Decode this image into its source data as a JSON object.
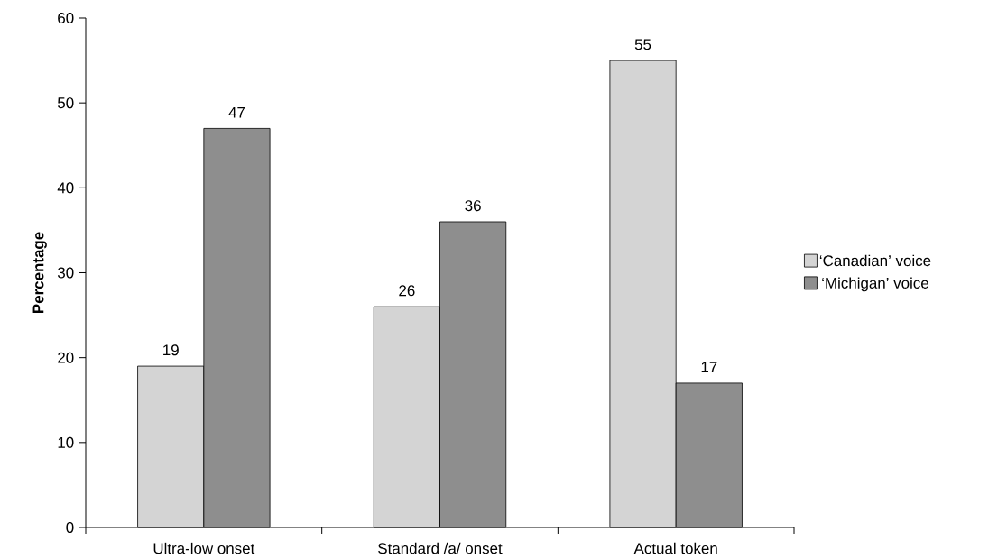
{
  "chart_data": {
    "type": "bar",
    "ylabel": "Percentage",
    "categories": [
      "Ultra-low onset",
      "Standard /a/ onset",
      "Actual token"
    ],
    "series": [
      {
        "name": "‘Canadian’ voice",
        "color": "#d4d4d4",
        "values": [
          19,
          26,
          55
        ]
      },
      {
        "name": "‘Michigan’ voice",
        "color": "#8e8e8e",
        "values": [
          47,
          36,
          17
        ]
      }
    ],
    "ylim": [
      0,
      60
    ],
    "yticks": [
      0,
      10,
      20,
      30,
      40,
      50,
      60
    ],
    "grid": false,
    "legend": "right",
    "data_labels": true
  }
}
